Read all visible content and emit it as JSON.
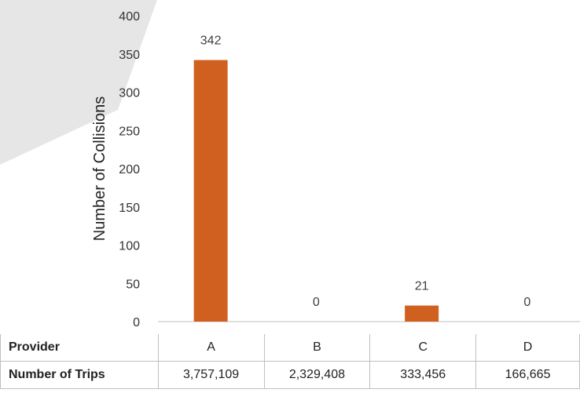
{
  "colors": {
    "bar": "#d06020",
    "decoration": "#e6e6e6",
    "grid_axis": "#bfbfbf"
  },
  "chart_data": {
    "type": "bar",
    "categories": [
      "A",
      "B",
      "C",
      "D"
    ],
    "values": [
      342,
      0,
      21,
      0
    ],
    "data_labels": [
      "342",
      "0",
      "21",
      "0"
    ],
    "ylabel": "Number of Collisions",
    "ylim": [
      0,
      400
    ],
    "yticks": [
      0,
      50,
      100,
      150,
      200,
      250,
      300,
      350,
      400
    ],
    "grid": false,
    "legend": "none"
  },
  "table": {
    "rows": [
      {
        "label": "Provider",
        "cells": [
          "A",
          "B",
          "C",
          "D"
        ]
      },
      {
        "label": "Number of Trips",
        "cells": [
          "3,757,109",
          "2,329,408",
          "333,456",
          "166,665"
        ]
      }
    ]
  }
}
